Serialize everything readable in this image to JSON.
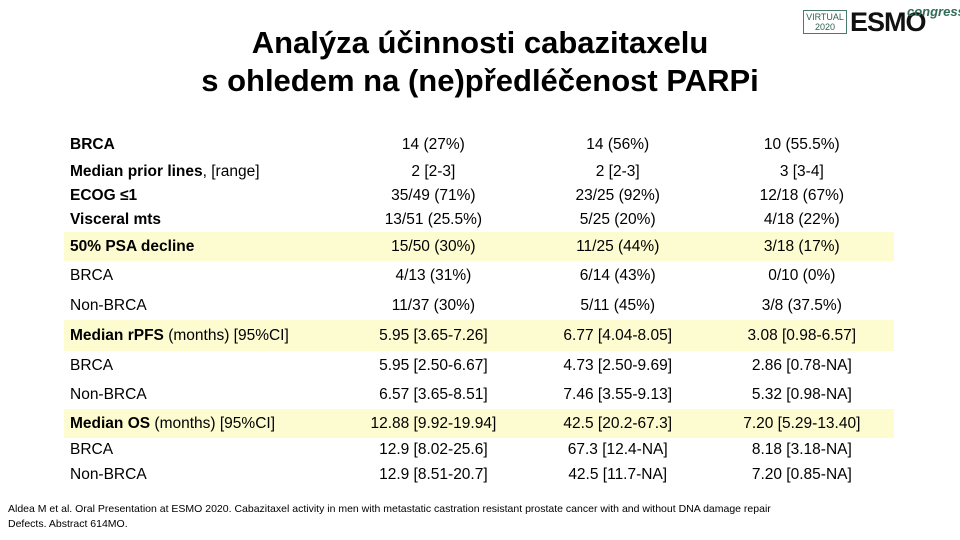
{
  "logo": {
    "virtual_line1": "VIRTUAL",
    "virtual_line2": "2020",
    "esmo": "ESMO",
    "congress": "congress"
  },
  "title": {
    "line1": "Analýza účinnosti cabazitaxelu",
    "line2": "s ohledem na (ne)předléčenost PARPi"
  },
  "rows": [
    {
      "bold": "BRCA",
      "rest": "",
      "values": [
        "14 (27%)",
        "14 (56%)",
        "10 (55.5%)"
      ],
      "highlight": false
    },
    {
      "bold": "Median prior lines",
      "rest": ", [range]",
      "values": [
        "2 [2-3]",
        "2 [2-3]",
        "3 [3-4]"
      ],
      "highlight": false
    },
    {
      "bold": "ECOG ≤1",
      "rest": "",
      "values": [
        "35/49 (71%)",
        "23/25 (92%)",
        "12/18 (67%)"
      ],
      "highlight": false
    },
    {
      "bold": "Visceral mts",
      "rest": "",
      "values": [
        "13/51 (25.5%)",
        "5/25 (20%)",
        "4/18 (22%)"
      ],
      "highlight": false
    },
    {
      "bold": "50% PSA decline",
      "rest": "",
      "values": [
        "15/50 (30%)",
        "11/25 (44%)",
        "3/18 (17%)"
      ],
      "highlight": true
    },
    {
      "bold": "",
      "rest": "BRCA",
      "values": [
        "4/13 (31%)",
        "6/14 (43%)",
        "0/10 (0%)"
      ],
      "highlight": false
    },
    {
      "bold": "",
      "rest": "Non-BRCA",
      "values": [
        "11/37 (30%)",
        "5/11 (45%)",
        "3/8 (37.5%)"
      ],
      "highlight": false
    },
    {
      "bold": "Median rPFS",
      "rest": " (months) [95%CI]",
      "values": [
        "5.95 [3.65-7.26]",
        "6.77 [4.04-8.05]",
        "3.08 [0.98-6.57]"
      ],
      "highlight": true
    },
    {
      "bold": "",
      "rest": "BRCA",
      "values": [
        "5.95 [2.50-6.67]",
        "4.73 [2.50-9.69]",
        "2.86 [0.78-NA]"
      ],
      "highlight": false
    },
    {
      "bold": "",
      "rest": "Non-BRCA",
      "values": [
        "6.57 [3.65-8.51]",
        "7.46 [3.55-9.13]",
        "5.32 [0.98-NA]"
      ],
      "highlight": false
    },
    {
      "bold": "Median OS",
      "rest": " (months) [95%CI]",
      "values": [
        "12.88 [9.92-19.94]",
        "42.5 [20.2-67.3]",
        "7.20 [5.29-13.40]"
      ],
      "highlight": true
    },
    {
      "bold": "",
      "rest": "BRCA",
      "values": [
        "12.9 [8.02-25.6]",
        "67.3 [12.4-NA]",
        "8.18 [3.18-NA]"
      ],
      "highlight": false
    },
    {
      "bold": "",
      "rest": "Non-BRCA",
      "values": [
        "12.9 [8.51-20.7]",
        "42.5 [11.7-NA]",
        "7.20 [0.85-NA]"
      ],
      "highlight": false
    }
  ],
  "footer": {
    "line1": "Aldea M et al. Oral Presentation at ESMO 2020. Cabazitaxel activity in men with metastatic castration resistant prostate cancer with and without DNA damage repair",
    "line2": "Defects. Abstract 614MO."
  }
}
